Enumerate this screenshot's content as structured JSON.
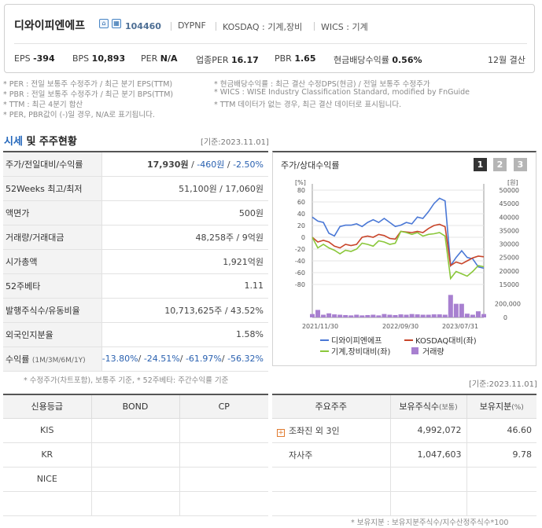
{
  "header": {
    "company_name": "디와이피엔에프",
    "ticker": "104460",
    "eng_code": "DYPNF",
    "market": "KOSDAQ : 기계,장비",
    "wics": "WICS : 기계",
    "fiscal": "12월 결산",
    "metrics": {
      "eps_label": "EPS",
      "eps": "-394",
      "bps_label": "BPS",
      "bps": "10,893",
      "per_label": "PER",
      "per": "N/A",
      "ind_per_label": "업종PER",
      "ind_per": "16.17",
      "pbr_label": "PBR",
      "pbr": "1.65",
      "div_label": "현금배당수익률",
      "div": "0.56%"
    }
  },
  "notes": {
    "per": "* PER : 전일 보통주 수정주가 / 최근 분기 EPS(TTM)",
    "pbr": "* PBR : 전일 보통주 수정주가 / 최근 분기 BPS(TTM)",
    "ttm": "* TTM : 최근 4분기 합산",
    "negative": "* PER, PBR값이 (-)일 경우, N/A로 표기됩니다.",
    "div": "* 현금배당수익률 : 최근 결산 수정DPS(현금) / 전일 보통주 수정주가",
    "wics": "* WICS : WISE Industry Classification Standard, modified by FnGuide",
    "ttm_missing": "* TTM 데이터가 없는 경우, 최근 결산 데이터로 표시됩니다."
  },
  "section": {
    "title_highlight": "시세",
    "title_rest": " 및 주주현황",
    "date": "[기준:2023.11.01]"
  },
  "price_table": {
    "rows": [
      {
        "label": "주가/전일대비/수익률",
        "price": "17,930원",
        "change": "-460원",
        "rate": "-2.50%"
      },
      {
        "label": "52Weeks 최고/최저",
        "value": "51,100원 / 17,060원"
      },
      {
        "label": "액면가",
        "value": "500원"
      },
      {
        "label": "거래량/거래대금",
        "value": "48,258주 / 9억원"
      },
      {
        "label": "시가총액",
        "value": "1,921억원"
      },
      {
        "label": "52주베타",
        "value": "1.11"
      },
      {
        "label": "발행주식수/유동비율",
        "value": "10,713,625주 / 43.52%"
      },
      {
        "label": "외국인지분율",
        "value": "1.58%"
      },
      {
        "label": "수익률",
        "label_small": "(1M/3M/6M/1Y)",
        "r1": "-13.80%",
        "r2": "-24.51%",
        "r3": "-61.97%",
        "r4": "-56.32%"
      }
    ],
    "footnote": "* 수정주가(차트포함), 보통주 기준, * 52주베타: 주간수익률 기준"
  },
  "chart_panel": {
    "title": "주가/상대수익률",
    "pages": [
      "1",
      "2",
      "3"
    ],
    "active_page": "1"
  },
  "chart_data": {
    "type": "line",
    "left_axis_unit": "[%]",
    "right_axis_unit": "[원]",
    "left_ticks": [
      "80",
      "60",
      "40",
      "20",
      "0",
      "-20",
      "-40",
      "-60",
      "-80"
    ],
    "right_ticks": [
      "50000",
      "45000",
      "40000",
      "35000",
      "30000",
      "25000",
      "20000",
      "15000"
    ],
    "volume_ticks": [
      "200,000",
      "0"
    ],
    "x_ticks": [
      "2021/11/30",
      "2022/09/30",
      "2023/07/31"
    ],
    "ylim_pct": [
      -80,
      80
    ],
    "ylim_price": [
      15000,
      50000
    ],
    "ylim_volume": [
      0,
      200000
    ],
    "series": [
      {
        "name": "디와이피엔에프",
        "color": "#4a78d6",
        "axis": "price",
        "values": [
          40000,
          38500,
          38000,
          34000,
          33000,
          36500,
          37000,
          37000,
          37500,
          36500,
          38000,
          39000,
          38000,
          39500,
          38000,
          36500,
          37000,
          38000,
          37500,
          40000,
          39500,
          42000,
          45000,
          47000,
          46000,
          22000,
          25000,
          27500,
          25000,
          24500,
          21500,
          21000
        ]
      },
      {
        "name": "KOSDAQ대비(좌)",
        "color": "#c8452a",
        "axis": "pct",
        "values": [
          0,
          -8,
          -5,
          -8,
          -15,
          -18,
          -12,
          -14,
          -12,
          0,
          2,
          0,
          5,
          3,
          -2,
          -3,
          10,
          9,
          8,
          10,
          8,
          15,
          20,
          22,
          18,
          -48,
          -42,
          -45,
          -40,
          -35,
          -32,
          -33
        ]
      },
      {
        "name": "기계,장비대비(좌)",
        "color": "#8ac73a",
        "axis": "pct",
        "values": [
          0,
          -18,
          -12,
          -18,
          -22,
          -28,
          -22,
          -24,
          -20,
          -10,
          -12,
          -15,
          -6,
          -8,
          -12,
          -10,
          10,
          8,
          5,
          8,
          2,
          5,
          6,
          8,
          2,
          -70,
          -58,
          -62,
          -66,
          -58,
          -48,
          -50
        ]
      },
      {
        "name": "거래량",
        "color": "#a880d0",
        "axis": "volume",
        "values": [
          50000,
          110000,
          40000,
          60000,
          45000,
          40000,
          35000,
          30000,
          40000,
          30000,
          35000,
          40000,
          30000,
          50000,
          40000,
          35000,
          45000,
          40000,
          50000,
          45000,
          40000,
          40000,
          45000,
          45000,
          40000,
          330000,
          200000,
          200000,
          55000,
          40000,
          90000,
          50000
        ]
      }
    ]
  },
  "credit_table": {
    "headers": [
      "신용등급",
      "BOND",
      "CP"
    ],
    "rows": [
      "KIS",
      "KR",
      "NICE",
      ""
    ]
  },
  "holder_table": {
    "date": "[기준:2023.11.01]",
    "headers": {
      "holder": "주요주주",
      "shares": "보유주식수",
      "shares_small": "(보통)",
      "ratio": "보유지분",
      "ratio_small": "(%)"
    },
    "rows": [
      {
        "name": "조좌진 외 3인",
        "shares": "4,992,072",
        "ratio": "46.60",
        "expand": true
      },
      {
        "name": "자사주",
        "shares": "1,047,603",
        "ratio": "9.78",
        "expand": false
      }
    ],
    "footnote": "* 보유지분 : 보유지분주식수/지수산정주식수*100"
  }
}
